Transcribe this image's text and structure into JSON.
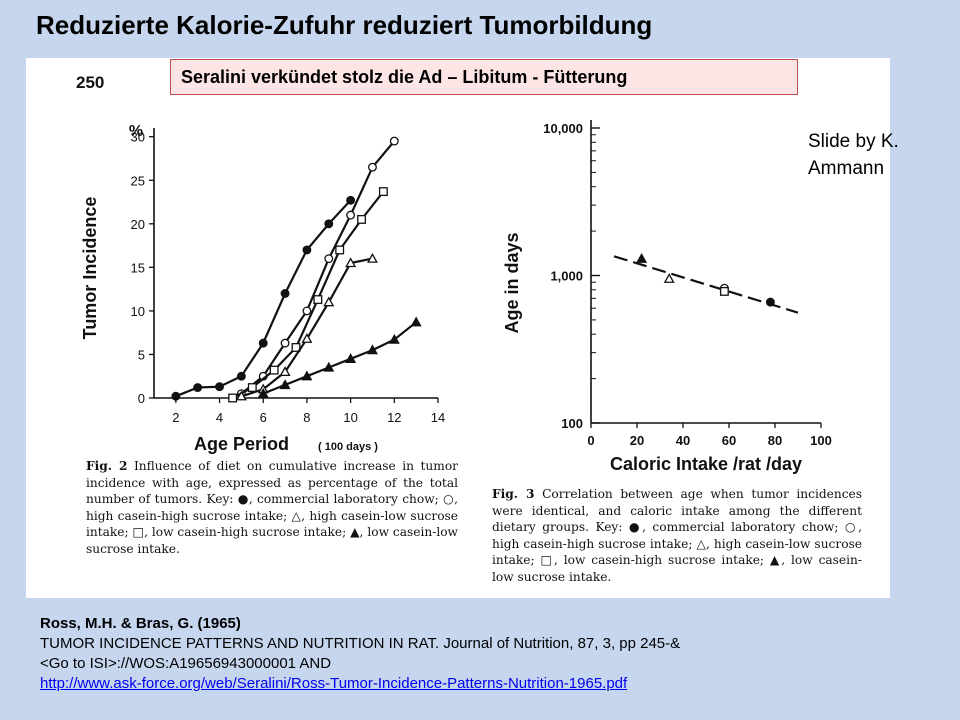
{
  "slide": {
    "title": "Reduzierte Kalorie-Zufuhr reduziert Tumorbildung",
    "callout": "Seralini verkündet stolz die Ad – Libitum - Fütterung",
    "credit": "Slide by K. Ammann"
  },
  "scan": {
    "page_number": "250",
    "fig2_caption": {
      "label": "Fig. 2",
      "text": "Influence of diet on cumulative increase in tumor incidence with age, expressed as percentage of the total number of tumors. Key: ●, commercial laboratory chow; ○, high casein-high sucrose intake; △, high casein-low sucrose intake; □, low casein-high sucrose intake; ▲, low casein-low sucrose intake."
    },
    "fig3_caption": {
      "label": "Fig. 3",
      "text": "Correlation between age when tumor incidences were identical, and caloric intake among the different dietary groups. Key: ●, commercial laboratory chow; ○, high casein-high sucrose intake; △, high casein-low sucrose intake; □, low casein-high sucrose intake; ▲, low casein-low sucrose intake."
    }
  },
  "reference": {
    "authors": "Ross, M.H. & Bras, G. (1965)",
    "line1": "TUMOR INCIDENCE PATTERNS AND NUTRITION IN RAT. Journal of Nutrition, 87, 3, pp  245-&",
    "line2": "<Go to ISI>://WOS:A19656943000001 AND",
    "link": "http://www.ask-force.org/web/Seralini/Ross-Tumor-Incidence-Patterns-Nutrition-1965.pdf"
  },
  "chart_data": [
    {
      "type": "line",
      "xlabel": "Age Period",
      "xlabel_unit": "( 100 days )",
      "ylabel": "Tumor Incidence",
      "yunit": "%",
      "xlim": [
        1,
        14
      ],
      "ylim": [
        0,
        31
      ],
      "xticks": [
        2,
        4,
        6,
        8,
        10,
        12,
        14
      ],
      "yticks": [
        0,
        5,
        10,
        15,
        20,
        25,
        30
      ],
      "series": [
        {
          "marker": "filled-circle",
          "x": [
            2,
            3,
            4,
            5,
            6,
            7,
            8,
            9,
            10
          ],
          "y": [
            0.2,
            1.2,
            1.3,
            2.5,
            6.3,
            12,
            17,
            20,
            22.7
          ]
        },
        {
          "marker": "open-circle",
          "x": [
            5,
            6,
            7,
            8,
            9,
            10,
            11,
            12
          ],
          "y": [
            0.5,
            2.5,
            6.3,
            10,
            16,
            21,
            26.5,
            29.5
          ]
        },
        {
          "marker": "open-square",
          "x": [
            4.6,
            5.5,
            6.5,
            7.5,
            8.5,
            9.5,
            10.5,
            11.5
          ],
          "y": [
            0,
            1.2,
            3.2,
            5.8,
            11.3,
            17,
            20.5,
            23.7
          ]
        },
        {
          "marker": "open-triangle",
          "x": [
            5,
            6,
            7,
            8,
            9,
            10,
            11
          ],
          "y": [
            0.2,
            1,
            3,
            6.8,
            11,
            15.5,
            16
          ]
        },
        {
          "marker": "filled-triangle",
          "x": [
            6,
            7,
            8,
            9,
            10,
            11,
            12,
            13
          ],
          "y": [
            0.5,
            1.5,
            2.5,
            3.5,
            4.5,
            5.5,
            6.7,
            8.7
          ]
        }
      ]
    },
    {
      "type": "scatter",
      "xlabel": "Caloric Intake /rat /day",
      "ylabel": "Age in days",
      "yscale": "log",
      "xlim": [
        0,
        100
      ],
      "ylim": [
        100,
        10000
      ],
      "xticks": [
        0,
        20,
        40,
        60,
        80,
        100
      ],
      "yticks": [
        100,
        1000,
        10000
      ],
      "ytick_labels": [
        "100",
        "1,000",
        "10,000"
      ],
      "trend": {
        "x": [
          10,
          90
        ],
        "y": [
          1350,
          560
        ]
      },
      "points": [
        {
          "marker": "filled-triangle",
          "x": 22,
          "y": 1300
        },
        {
          "marker": "open-triangle",
          "x": 34,
          "y": 950
        },
        {
          "marker": "open-circle",
          "x": 58,
          "y": 820
        },
        {
          "marker": "open-square",
          "x": 58,
          "y": 780
        },
        {
          "marker": "filled-circle",
          "x": 78,
          "y": 660
        }
      ]
    }
  ]
}
